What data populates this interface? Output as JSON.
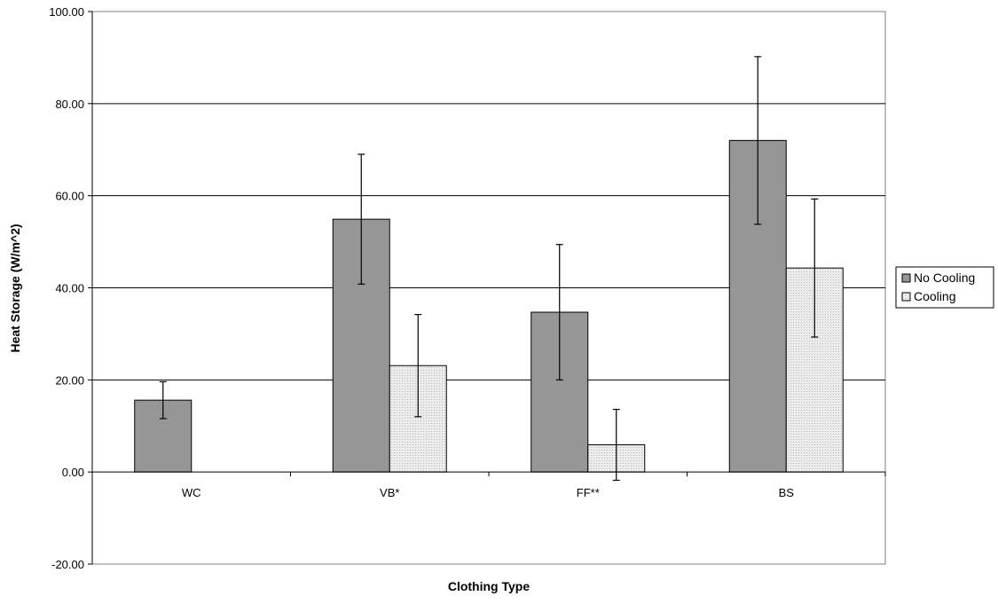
{
  "chart_data": {
    "type": "bar",
    "xlabel": "Clothing Type",
    "ylabel": "Heat Storage (W/m^2)",
    "categories": [
      "WC",
      "VB*",
      "FF**",
      "BS"
    ],
    "ylim": [
      -20,
      100
    ],
    "yticks": [
      -20,
      0,
      20,
      40,
      60,
      80,
      100
    ],
    "ytick_labels": [
      "-20.00",
      "0.00",
      "20.00",
      "40.00",
      "60.00",
      "80.00",
      "100.00"
    ],
    "grid": true,
    "legend_position": "right",
    "series": [
      {
        "name": "No Cooling",
        "color": "#969696",
        "values": [
          15.6,
          54.9,
          34.7,
          72.0
        ],
        "error": [
          4.0,
          14.1,
          14.7,
          18.2
        ]
      },
      {
        "name": "Cooling",
        "color": "#e6e6e6",
        "values": [
          null,
          23.1,
          5.9,
          44.3
        ],
        "error": [
          null,
          11.1,
          7.7,
          15.0
        ]
      }
    ]
  }
}
